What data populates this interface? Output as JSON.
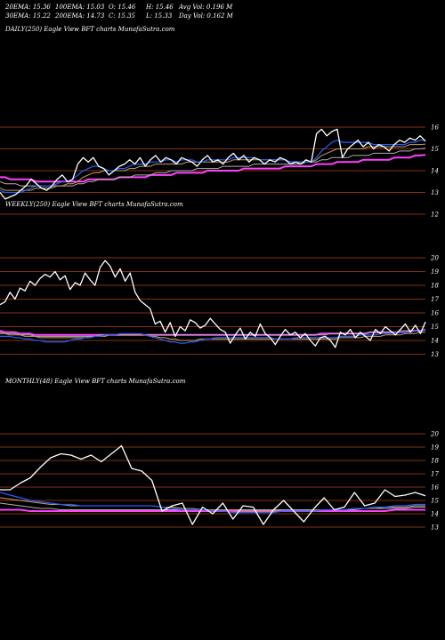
{
  "header": {
    "ema20": "20EMA: 15.36",
    "ema100": "100EMA: 15.03",
    "open": "O: 15.46",
    "high": "H: 15.46",
    "avg_vol": "Avg Vol: 0.196  M",
    "ema30": "30EMA: 15.22",
    "ema200": "200EMA: 14.73",
    "close": "C: 15.35",
    "low": "L: 15.33",
    "day_vol": "Day Vol: 0.162  M"
  },
  "colors": {
    "background": "#000000",
    "price": "#ffffff",
    "ema_fast": "#2060ff",
    "ema_mid": "#c8a060",
    "ema_slow": "#b0b0b0",
    "ema_long": "#ff40ff",
    "gridline": "#b04010"
  },
  "chart_data": [
    {
      "type": "line",
      "panel_label": "DAILY(250) Eagle  View  BFT charts MunafaSutra.com",
      "ticks": [
        "16",
        "15",
        "14",
        "13",
        "12"
      ],
      "price": [
        13.0,
        12.7,
        12.8,
        12.9,
        13.1,
        13.3,
        13.6,
        13.4,
        13.2,
        13.1,
        13.3,
        13.6,
        13.8,
        13.5,
        13.6,
        14.3,
        14.6,
        14.4,
        14.6,
        14.2,
        14.1,
        13.8,
        14.0,
        14.2,
        14.3,
        14.5,
        14.3,
        14.6,
        14.2,
        14.5,
        14.7,
        14.4,
        14.6,
        14.5,
        14.3,
        14.6,
        14.5,
        14.4,
        14.2,
        14.5,
        14.7,
        14.4,
        14.5,
        14.3,
        14.6,
        14.8,
        14.5,
        14.7,
        14.4,
        14.6,
        14.5,
        14.3,
        14.5,
        14.4,
        14.6,
        14.5,
        14.3,
        14.4,
        14.3,
        14.5,
        14.4,
        15.7,
        15.9,
        15.6,
        15.8,
        15.9,
        14.6,
        15.0,
        15.2,
        15.4,
        15.1,
        15.3,
        15.0,
        15.2,
        15.1,
        14.9,
        15.2,
        15.4,
        15.3,
        15.5,
        15.4,
        15.6,
        15.35
      ],
      "ema20": [
        13.1,
        13.0,
        13.0,
        13.0,
        13.0,
        13.1,
        13.2,
        13.3,
        13.3,
        13.3,
        13.3,
        13.4,
        13.5,
        13.5,
        13.6,
        13.8,
        14.0,
        14.1,
        14.2,
        14.2,
        14.1,
        14.0,
        14.0,
        14.1,
        14.1,
        14.2,
        14.3,
        14.3,
        14.3,
        14.4,
        14.4,
        14.4,
        14.5,
        14.5,
        14.4,
        14.5,
        14.5,
        14.5,
        14.4,
        14.4,
        14.5,
        14.5,
        14.5,
        14.5,
        14.5,
        14.6,
        14.6,
        14.6,
        14.6,
        14.6,
        14.5,
        14.5,
        14.5,
        14.5,
        14.5,
        14.5,
        14.4,
        14.4,
        14.4,
        14.4,
        14.4,
        14.6,
        14.9,
        15.1,
        15.3,
        15.4,
        15.3,
        15.3,
        15.3,
        15.3,
        15.3,
        15.3,
        15.2,
        15.2,
        15.2,
        15.2,
        15.2,
        15.2,
        15.2,
        15.3,
        15.3,
        15.4,
        15.4
      ],
      "ema30": [
        13.2,
        13.1,
        13.1,
        13.1,
        13.1,
        13.1,
        13.1,
        13.2,
        13.2,
        13.2,
        13.2,
        13.3,
        13.3,
        13.4,
        13.4,
        13.5,
        13.7,
        13.8,
        13.9,
        13.9,
        14.0,
        14.0,
        14.0,
        14.0,
        14.0,
        14.1,
        14.1,
        14.2,
        14.2,
        14.2,
        14.3,
        14.3,
        14.3,
        14.3,
        14.3,
        14.3,
        14.4,
        14.4,
        14.4,
        14.4,
        14.4,
        14.4,
        14.4,
        14.4,
        14.4,
        14.5,
        14.5,
        14.5,
        14.5,
        14.5,
        14.5,
        14.5,
        14.5,
        14.5,
        14.5,
        14.5,
        14.4,
        14.4,
        14.4,
        14.4,
        14.4,
        14.5,
        14.7,
        14.8,
        14.9,
        15.0,
        15.0,
        15.0,
        15.0,
        15.0,
        15.0,
        15.1,
        15.1,
        15.1,
        15.1,
        15.1,
        15.1,
        15.1,
        15.1,
        15.2,
        15.2,
        15.2,
        15.22
      ],
      "ema100": [
        13.5,
        13.4,
        13.4,
        13.4,
        13.3,
        13.3,
        13.3,
        13.3,
        13.3,
        13.3,
        13.3,
        13.3,
        13.3,
        13.3,
        13.3,
        13.4,
        13.4,
        13.5,
        13.5,
        13.6,
        13.6,
        13.6,
        13.6,
        13.7,
        13.7,
        13.7,
        13.8,
        13.8,
        13.8,
        13.8,
        13.9,
        13.9,
        13.9,
        14.0,
        14.0,
        14.0,
        14.0,
        14.0,
        14.1,
        14.1,
        14.1,
        14.1,
        14.1,
        14.2,
        14.2,
        14.2,
        14.2,
        14.2,
        14.2,
        14.3,
        14.3,
        14.3,
        14.3,
        14.3,
        14.3,
        14.3,
        14.3,
        14.3,
        14.3,
        14.4,
        14.4,
        14.4,
        14.5,
        14.5,
        14.6,
        14.6,
        14.6,
        14.6,
        14.7,
        14.7,
        14.7,
        14.7,
        14.8,
        14.8,
        14.8,
        14.8,
        14.8,
        14.9,
        14.9,
        14.9,
        15.0,
        15.0,
        15.03
      ],
      "ema200": [
        13.7,
        13.7,
        13.6,
        13.6,
        13.6,
        13.6,
        13.6,
        13.5,
        13.5,
        13.5,
        13.5,
        13.5,
        13.5,
        13.5,
        13.5,
        13.5,
        13.5,
        13.6,
        13.6,
        13.6,
        13.6,
        13.6,
        13.6,
        13.7,
        13.7,
        13.7,
        13.7,
        13.7,
        13.7,
        13.8,
        13.8,
        13.8,
        13.8,
        13.8,
        13.9,
        13.9,
        13.9,
        13.9,
        13.9,
        13.9,
        14.0,
        14.0,
        14.0,
        14.0,
        14.0,
        14.0,
        14.0,
        14.1,
        14.1,
        14.1,
        14.1,
        14.1,
        14.1,
        14.1,
        14.1,
        14.2,
        14.2,
        14.2,
        14.2,
        14.2,
        14.2,
        14.3,
        14.3,
        14.3,
        14.3,
        14.4,
        14.4,
        14.4,
        14.4,
        14.4,
        14.5,
        14.5,
        14.5,
        14.5,
        14.5,
        14.5,
        14.6,
        14.6,
        14.6,
        14.6,
        14.7,
        14.7,
        14.73
      ]
    },
    {
      "type": "line",
      "panel_label": "WEEKLY(250) Eagle  View  BFT charts MunafaSutra.com",
      "ticks": [
        "20",
        "19",
        "18",
        "17",
        "16",
        "15",
        "14",
        "13"
      ],
      "price": [
        16.6,
        16.8,
        17.5,
        17.0,
        17.8,
        17.6,
        18.3,
        18.0,
        18.5,
        18.8,
        18.6,
        19.0,
        18.4,
        18.7,
        17.7,
        18.2,
        18.0,
        18.9,
        18.4,
        18.0,
        19.3,
        19.8,
        19.4,
        18.6,
        19.2,
        18.3,
        18.9,
        17.5,
        16.9,
        16.6,
        16.3,
        15.2,
        15.4,
        14.6,
        15.3,
        14.3,
        15.0,
        14.7,
        15.5,
        15.3,
        14.9,
        15.1,
        15.6,
        15.2,
        14.8,
        14.6,
        13.8,
        14.4,
        14.9,
        14.1,
        14.6,
        14.3,
        15.2,
        14.5,
        14.2,
        13.7,
        14.3,
        14.8,
        14.4,
        14.6,
        14.2,
        14.5,
        14.0,
        13.6,
        14.2,
        14.3,
        14.0,
        13.5,
        14.6,
        14.4,
        14.8,
        14.2,
        14.6,
        14.3,
        14.0,
        14.8,
        14.5,
        15.0,
        14.7,
        14.4,
        14.8,
        15.2,
        14.6,
        15.1,
        14.5,
        15.35
      ],
      "ema20": [
        14.3,
        14.3,
        14.3,
        14.2,
        14.2,
        14.1,
        14.1,
        14.0,
        14.0,
        13.9,
        13.9,
        13.9,
        13.9,
        13.9,
        14.0,
        14.1,
        14.1,
        14.2,
        14.2,
        14.3,
        14.3,
        14.4,
        14.4,
        14.4,
        14.5,
        14.5,
        14.5,
        14.5,
        14.5,
        14.4,
        14.3,
        14.2,
        14.1,
        14.0,
        13.9,
        13.9,
        13.8,
        13.8,
        13.9,
        13.9,
        14.0,
        14.1,
        14.1,
        14.2,
        14.2,
        14.2,
        14.2,
        14.2,
        14.2,
        14.2,
        14.2,
        14.2,
        14.2,
        14.2,
        14.2,
        14.1,
        14.1,
        14.1,
        14.1,
        14.2,
        14.2,
        14.2,
        14.2,
        14.2,
        14.2,
        14.2,
        14.2,
        14.2,
        14.3,
        14.3,
        14.3,
        14.3,
        14.4,
        14.4,
        14.4,
        14.4,
        14.5,
        14.5,
        14.5,
        14.6,
        14.6,
        14.6,
        14.6,
        14.7,
        14.7,
        14.8
      ],
      "ema30": [
        14.5,
        14.5,
        14.4,
        14.4,
        14.4,
        14.3,
        14.3,
        14.3,
        14.2,
        14.2,
        14.2,
        14.2,
        14.2,
        14.2,
        14.2,
        14.2,
        14.2,
        14.2,
        14.3,
        14.3,
        14.3,
        14.3,
        14.4,
        14.4,
        14.4,
        14.4,
        14.4,
        14.4,
        14.4,
        14.4,
        14.3,
        14.3,
        14.2,
        14.2,
        14.1,
        14.1,
        14.0,
        14.0,
        14.0,
        14.0,
        14.1,
        14.1,
        14.1,
        14.1,
        14.1,
        14.1,
        14.1,
        14.1,
        14.1,
        14.1,
        14.1,
        14.1,
        14.1,
        14.1,
        14.1,
        14.1,
        14.1,
        14.1,
        14.1,
        14.1,
        14.1,
        14.1,
        14.1,
        14.1,
        14.1,
        14.1,
        14.1,
        14.1,
        14.2,
        14.2,
        14.2,
        14.2,
        14.2,
        14.3,
        14.3,
        14.3,
        14.3,
        14.4,
        14.4,
        14.4,
        14.4,
        14.5,
        14.5,
        14.5,
        14.6,
        14.6
      ],
      "ema100": [
        14.6,
        14.5,
        14.5,
        14.5,
        14.4,
        14.4,
        14.4,
        14.3,
        14.3,
        14.3,
        14.3,
        14.3,
        14.3,
        14.3,
        14.3,
        14.3,
        14.3,
        14.3,
        14.3,
        14.3,
        14.4,
        14.4,
        14.4,
        14.4,
        14.4,
        14.4,
        14.4,
        14.4,
        14.4,
        14.4,
        14.4,
        14.4,
        14.4,
        14.4,
        14.4,
        14.4,
        14.4,
        14.4,
        14.4,
        14.4,
        14.4,
        14.4,
        14.4,
        14.4,
        14.4,
        14.4,
        14.4,
        14.4,
        14.4,
        14.4,
        14.4,
        14.4,
        14.4,
        14.4,
        14.4,
        14.4,
        14.4,
        14.4,
        14.4,
        14.4,
        14.4,
        14.4,
        14.4,
        14.4,
        14.4,
        14.4,
        14.5,
        14.5,
        14.5,
        14.5,
        14.5,
        14.5,
        14.5,
        14.5,
        14.6,
        14.6,
        14.6,
        14.6,
        14.6,
        14.6,
        14.7,
        14.7,
        14.7,
        14.7,
        14.7,
        14.8
      ],
      "ema200": [
        14.7,
        14.6,
        14.6,
        14.6,
        14.5,
        14.5,
        14.5,
        14.4,
        14.4,
        14.4,
        14.4,
        14.4,
        14.4,
        14.4,
        14.4,
        14.4,
        14.4,
        14.4,
        14.4,
        14.4,
        14.4,
        14.4,
        14.4,
        14.4,
        14.4,
        14.4,
        14.4,
        14.4,
        14.4,
        14.4,
        14.4,
        14.4,
        14.4,
        14.4,
        14.4,
        14.4,
        14.4,
        14.4,
        14.4,
        14.4,
        14.4,
        14.4,
        14.4,
        14.4,
        14.4,
        14.4,
        14.4,
        14.4,
        14.4,
        14.4,
        14.4,
        14.4,
        14.4,
        14.4,
        14.4,
        14.4,
        14.4,
        14.4,
        14.4,
        14.4,
        14.4,
        14.4,
        14.4,
        14.4,
        14.5,
        14.5,
        14.5,
        14.5,
        14.5,
        14.5,
        14.5,
        14.5,
        14.5,
        14.5,
        14.6,
        14.6,
        14.6,
        14.6,
        14.6,
        14.6,
        14.6,
        14.6,
        14.7,
        14.7,
        14.7,
        14.8
      ]
    },
    {
      "type": "line",
      "panel_label": "MONTHLY(48) Eagle  View  BFT charts MunafaSutra.com",
      "ticks": [
        "20",
        "19",
        "18",
        "17",
        "16",
        "15",
        "14",
        "13"
      ],
      "price": [
        15.8,
        15.8,
        16.3,
        16.7,
        17.5,
        18.2,
        18.5,
        18.4,
        18.1,
        18.4,
        17.9,
        18.5,
        19.1,
        17.4,
        17.2,
        16.5,
        14.2,
        14.6,
        14.8,
        13.2,
        14.5,
        14.0,
        14.8,
        13.6,
        14.6,
        14.5,
        13.2,
        14.3,
        15.0,
        14.2,
        13.4,
        14.4,
        15.2,
        14.3,
        14.5,
        15.6,
        14.6,
        14.8,
        15.8,
        15.3,
        15.4,
        15.6,
        15.35
      ],
      "ema20": [
        15.6,
        15.4,
        15.2,
        15.0,
        14.9,
        14.8,
        14.7,
        14.7,
        14.6,
        14.6,
        14.6,
        14.6,
        14.6,
        14.6,
        14.6,
        14.6,
        14.5,
        14.4,
        14.3,
        14.3,
        14.3,
        14.2,
        14.2,
        14.1,
        14.1,
        14.1,
        14.1,
        14.1,
        14.2,
        14.2,
        14.2,
        14.2,
        14.3,
        14.3,
        14.3,
        14.4,
        14.4,
        14.5,
        14.5,
        14.6,
        14.6,
        14.7,
        14.7
      ],
      "ema30": [
        15.2,
        15.1,
        15.0,
        14.9,
        14.8,
        14.7,
        14.7,
        14.6,
        14.6,
        14.6,
        14.6,
        14.6,
        14.6,
        14.6,
        14.6,
        14.6,
        14.5,
        14.5,
        14.4,
        14.4,
        14.3,
        14.3,
        14.3,
        14.3,
        14.2,
        14.2,
        14.2,
        14.2,
        14.2,
        14.2,
        14.2,
        14.3,
        14.3,
        14.3,
        14.3,
        14.4,
        14.4,
        14.4,
        14.5,
        14.5,
        14.5,
        14.6,
        14.6
      ],
      "ema100": [
        14.8,
        14.7,
        14.6,
        14.5,
        14.4,
        14.4,
        14.3,
        14.3,
        14.3,
        14.3,
        14.3,
        14.3,
        14.3,
        14.3,
        14.3,
        14.3,
        14.3,
        14.3,
        14.3,
        14.3,
        14.3,
        14.3,
        14.3,
        14.3,
        14.3,
        14.3,
        14.3,
        14.3,
        14.3,
        14.3,
        14.3,
        14.3,
        14.3,
        14.3,
        14.3,
        14.3,
        14.4,
        14.4,
        14.4,
        14.4,
        14.4,
        14.5,
        14.5
      ],
      "ema200": [
        14.3,
        14.3,
        14.3,
        14.2,
        14.2,
        14.2,
        14.2,
        14.2,
        14.2,
        14.2,
        14.2,
        14.2,
        14.2,
        14.2,
        14.2,
        14.2,
        14.2,
        14.2,
        14.2,
        14.2,
        14.2,
        14.2,
        14.2,
        14.2,
        14.2,
        14.2,
        14.2,
        14.2,
        14.2,
        14.2,
        14.2,
        14.2,
        14.2,
        14.2,
        14.2,
        14.2,
        14.2,
        14.2,
        14.2,
        14.3,
        14.3,
        14.3,
        14.3
      ]
    }
  ]
}
